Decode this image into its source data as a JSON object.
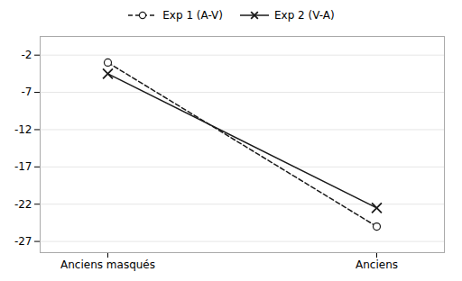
{
  "chart_data": {
    "type": "line",
    "categories": [
      "Anciens masqués",
      "Anciens"
    ],
    "series": [
      {
        "name": "Exp 1 (A-V)",
        "color": "#1a1a1a",
        "values": [
          -3.0,
          -25.0
        ],
        "marker": "circle",
        "line_style": "dashed"
      },
      {
        "name": "Exp 2 (V-A)",
        "color": "#1a1a1a",
        "values": [
          -4.5,
          -22.5
        ],
        "marker": "x",
        "line_style": "solid"
      }
    ],
    "ylim": [
      -28.5,
      0.5
    ],
    "yticks": [
      -27,
      -22,
      -17,
      -12,
      -7,
      -2
    ],
    "grid": true,
    "legend": "top"
  }
}
